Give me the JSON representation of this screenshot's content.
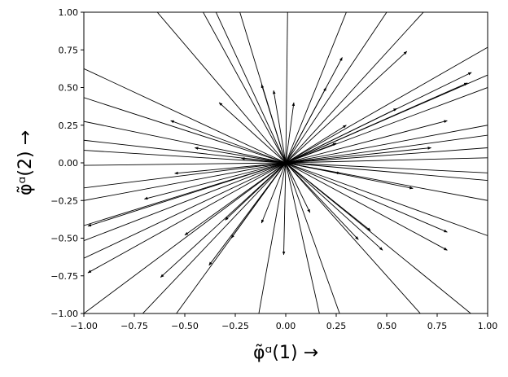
{
  "chart_data": {
    "type": "quiver",
    "x_label": "φ̃ᵅ(1) →",
    "y_label": "φ̃ᵅ(2) →",
    "u": [
      -0.7,
      -0.45,
      -0.38,
      -0.25,
      0.01,
      0.33,
      0.55,
      0.75,
      -1.2,
      -1.2,
      -1.2,
      -1.2,
      -1.2,
      -1.2,
      -1.2,
      -1.2,
      -1.2,
      -1.2,
      -1.2,
      -1.2,
      -0.85,
      -0.65,
      -0.16,
      0.2,
      0.32,
      0.8,
      1.1,
      1.2,
      1.2,
      1.2,
      1.2,
      1.2,
      1.2,
      1.2,
      1.2,
      1.2,
      1.2,
      1.2,
      -0.33,
      -0.57,
      -0.12,
      -0.06,
      0.04,
      0.2,
      0.28,
      0.6,
      0.92,
      0.9,
      0.8,
      0.55,
      0.3,
      -0.45,
      -0.55,
      -0.7,
      -0.98,
      -0.98,
      -0.62,
      -0.5,
      -0.3,
      -0.12,
      -0.01,
      0.12,
      0.36,
      0.42,
      0.48,
      0.8,
      0.8,
      0.63,
      0.27,
      0.72,
      -0.27,
      -0.38,
      0.25,
      -0.22
    ],
    "v": [
      1.1,
      1.1,
      1.1,
      1.1,
      1.1,
      1.1,
      1.1,
      1.1,
      0.75,
      0.52,
      0.33,
      0.18,
      0.1,
      -0.02,
      -0.2,
      -0.3,
      -0.5,
      -0.62,
      -0.76,
      -1.2,
      -1.2,
      -1.2,
      -1.2,
      -1.2,
      -1.2,
      -1.2,
      -1.2,
      0.92,
      0.7,
      0.6,
      0.3,
      0.22,
      0.12,
      0.04,
      -0.08,
      -0.14,
      -0.3,
      -0.58,
      0.4,
      0.28,
      0.52,
      0.48,
      0.4,
      0.5,
      0.7,
      0.74,
      0.6,
      0.53,
      0.28,
      0.36,
      0.25,
      0.1,
      -0.07,
      -0.24,
      -0.42,
      -0.73,
      -0.76,
      -0.48,
      -0.38,
      -0.4,
      -0.61,
      -0.33,
      -0.51,
      -0.45,
      -0.58,
      -0.46,
      -0.58,
      -0.17,
      -0.07,
      0.1,
      -0.5,
      -0.68,
      0.13,
      0.03
    ],
    "xlim": [
      -1,
      1
    ],
    "ylim": [
      -1,
      1
    ],
    "xticks": [
      {
        "value": -1,
        "label": "−1.00"
      },
      {
        "value": -0.75,
        "label": "−0.75"
      },
      {
        "value": -0.5,
        "label": "−0.50"
      },
      {
        "value": -0.25,
        "label": "−0.25"
      },
      {
        "value": 0,
        "label": "0.00"
      },
      {
        "value": 0.25,
        "label": "0.25"
      },
      {
        "value": 0.5,
        "label": "0.50"
      },
      {
        "value": 0.75,
        "label": "0.75"
      },
      {
        "value": 1,
        "label": "1.00"
      }
    ],
    "yticks": [
      {
        "value": -1,
        "label": "−1.00"
      },
      {
        "value": -0.75,
        "label": "−0.75"
      },
      {
        "value": -0.5,
        "label": "−0.50"
      },
      {
        "value": -0.25,
        "label": "−0.25"
      },
      {
        "value": 0,
        "label": "0.00"
      },
      {
        "value": 0.25,
        "label": "0.25"
      },
      {
        "value": 0.5,
        "label": "0.50"
      },
      {
        "value": 0.75,
        "label": "0.75"
      },
      {
        "value": 1,
        "label": "1.00"
      }
    ],
    "color": "#000000"
  }
}
